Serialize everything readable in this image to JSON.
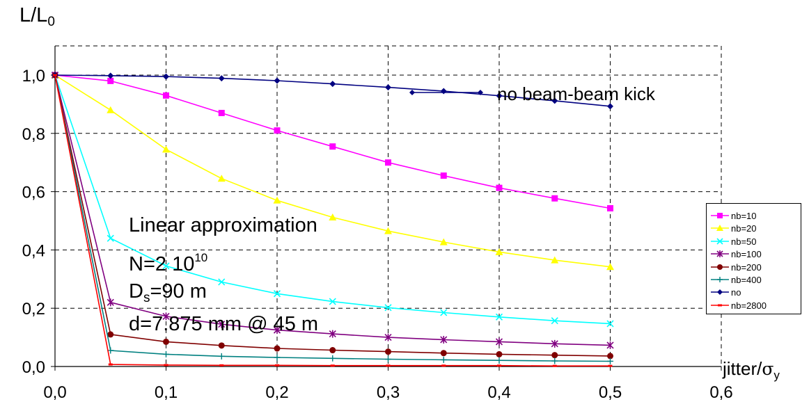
{
  "chart_data": {
    "type": "line",
    "ylabel_main": "L/L",
    "ylabel_sub": "0",
    "xlabel_main": "jitter/",
    "xlabel_sigma": "σ",
    "xlabel_sub": "y",
    "xlim": [
      0,
      0.6
    ],
    "ylim": [
      0,
      1.0
    ],
    "grid": true,
    "x_ticks": [
      "0,0",
      "0,1",
      "0,2",
      "0,3",
      "0,4",
      "0,5",
      "0,6"
    ],
    "y_ticks": [
      "0,0",
      "0,2",
      "0,4",
      "0,6",
      "0,8",
      "1,0"
    ],
    "x": [
      0,
      0.05,
      0.1,
      0.15,
      0.2,
      0.25,
      0.3,
      0.35,
      0.4,
      0.45,
      0.5
    ],
    "legend_position": "right",
    "series": [
      {
        "name": "nb=10",
        "color": "#ff00ff",
        "marker": "square",
        "values": [
          1.0,
          0.98,
          0.93,
          0.87,
          0.81,
          0.755,
          0.7,
          0.655,
          0.613,
          0.577,
          0.543
        ]
      },
      {
        "name": "nb=20",
        "color": "#ffff00",
        "marker": "triangle",
        "values": [
          1.0,
          0.88,
          0.745,
          0.645,
          0.57,
          0.512,
          0.465,
          0.427,
          0.393,
          0.365,
          0.342
        ]
      },
      {
        "name": "nb=50",
        "color": "#00ffff",
        "marker": "x",
        "values": [
          1.0,
          0.44,
          0.345,
          0.29,
          0.25,
          0.223,
          0.202,
          0.185,
          0.17,
          0.157,
          0.147
        ]
      },
      {
        "name": "nb=100",
        "color": "#800080",
        "marker": "star",
        "values": [
          1.0,
          0.22,
          0.172,
          0.145,
          0.125,
          0.112,
          0.1,
          0.092,
          0.085,
          0.078,
          0.073
        ]
      },
      {
        "name": "nb=200",
        "color": "#800000",
        "marker": "circle",
        "values": [
          1.0,
          0.11,
          0.085,
          0.072,
          0.062,
          0.056,
          0.051,
          0.046,
          0.042,
          0.039,
          0.036
        ]
      },
      {
        "name": "nb=400",
        "color": "#008080",
        "marker": "plus",
        "values": [
          1.0,
          0.055,
          0.042,
          0.035,
          0.031,
          0.028,
          0.025,
          0.023,
          0.021,
          0.019,
          0.018
        ]
      },
      {
        "name": "no",
        "color": "#000080",
        "marker": "diamond",
        "values": [
          1.0,
          0.998,
          0.995,
          0.989,
          0.981,
          0.97,
          0.958,
          0.945,
          0.929,
          0.912,
          0.893
        ]
      },
      {
        "name": "nb=2800",
        "color": "#ff0000",
        "marker": "dash",
        "values": [
          1.0,
          0.007,
          0.005,
          0.004,
          0.004,
          0.003,
          0.003,
          0.003,
          0.003,
          0.002,
          0.002
        ]
      }
    ],
    "inline_legend": {
      "label": "no beam-beam kick",
      "color": "#000080"
    },
    "annotations": {
      "line1": "Linear approximation",
      "line2_pre": "N=2 10",
      "line2_sup": "10",
      "line3_pre": "D",
      "line3_sub": "s",
      "line3_post": "=90 m",
      "line4": "d=7.875 mm @ 45 m"
    }
  }
}
